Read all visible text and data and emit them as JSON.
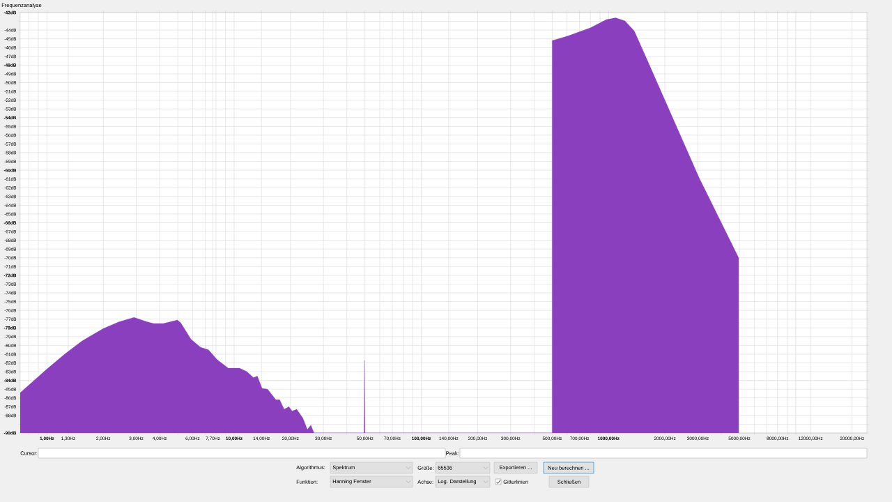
{
  "chart_data": {
    "type": "area",
    "title": "Frequenzanalyse",
    "annotations": [
      "Cursor:",
      "Peak:",
      "Algorithmus:",
      "Spektrum",
      "Größe:",
      "65536",
      "Exportieren ...",
      "Neu berechnen ...",
      "Funktion:",
      "Hanning Fenster",
      "Achse:",
      "Log. Darstellung",
      "Gitterlinien",
      "Schließen"
    ],
    "color": "#8a3fbf",
    "x": [
      0.72,
      0.72,
      1,
      1.26,
      1.54,
      1.99,
      2.43,
      2.92,
      3.42,
      3.72,
      4.18,
      4.97,
      5.18,
      5.88,
      6.61,
      7.3,
      8.09,
      9.3,
      10.7,
      11.7,
      12.7,
      13.3,
      14.1,
      15.1,
      16.7,
      17.5,
      18.5,
      19.6,
      20.4,
      21.6,
      23.3,
      24.6,
      25.7,
      26.7,
      35,
      49.4,
      49.7,
      50.0,
      200,
      500,
      500,
      600,
      798,
      975,
      1092,
      1224,
      1373,
      1585,
      3053,
      4955,
      4955
    ],
    "values": [
      -90.0,
      -85.4,
      -82.7,
      -80.9,
      -79.5,
      -78.1,
      -77.3,
      -76.8,
      -77.3,
      -77.5,
      -77.5,
      -77.1,
      -77.4,
      -79.3,
      -80.2,
      -80.5,
      -81.6,
      -82.6,
      -82.6,
      -83.0,
      -83.7,
      -83.5,
      -84.9,
      -85.0,
      -86.2,
      -86.2,
      -87.3,
      -87.0,
      -87.5,
      -87.3,
      -88.3,
      -89.6,
      -89.1,
      -90.0,
      null,
      -90.0,
      -81.7,
      -90.0,
      null,
      -90.0,
      -45.2,
      -44.7,
      -43.75,
      -42.8,
      -42.6,
      -42.95,
      -44.1,
      -47.1,
      -60.9,
      -70.0,
      -90.0
    ],
    "log": "x",
    "grid": true,
    "xlim": [
      0.72,
      24000
    ],
    "ylim": [
      -90,
      -42
    ],
    "xticks": [
      {
        "value": 0.8,
        "label": null
      },
      {
        "value": 0.9,
        "label": null
      },
      {
        "value": 1,
        "label": "1,00Hz"
      },
      {
        "value": 1.3,
        "label": "1,30Hz"
      },
      {
        "value": 2,
        "label": "2,00Hz"
      },
      {
        "value": 3,
        "label": "3,00Hz"
      },
      {
        "value": 4,
        "label": "4,00Hz"
      },
      {
        "value": 5,
        "label": null
      },
      {
        "value": 6,
        "label": "6,00Hz"
      },
      {
        "value": 7,
        "label": null
      },
      {
        "value": 7.7,
        "label": "7,70Hz"
      },
      {
        "value": 8,
        "label": null
      },
      {
        "value": 9,
        "label": null
      },
      {
        "value": 10,
        "label": "10,00Hz"
      },
      {
        "value": 14,
        "label": "14,00Hz"
      },
      {
        "value": 20,
        "label": "20,00Hz"
      },
      {
        "value": 30,
        "label": "30,00Hz"
      },
      {
        "value": 40,
        "label": null
      },
      {
        "value": 50,
        "label": "50,00Hz"
      },
      {
        "value": 60,
        "label": null
      },
      {
        "value": 70,
        "label": "70,00Hz"
      },
      {
        "value": 80,
        "label": null
      },
      {
        "value": 90,
        "label": null
      },
      {
        "value": 100,
        "label": "100,00Hz"
      },
      {
        "value": 140,
        "label": "140,00Hz"
      },
      {
        "value": 200,
        "label": "200,00Hz"
      },
      {
        "value": 300,
        "label": "300,00Hz"
      },
      {
        "value": 400,
        "label": null
      },
      {
        "value": 500,
        "label": "500,00Hz"
      },
      {
        "value": 600,
        "label": null
      },
      {
        "value": 700,
        "label": "700,00Hz"
      },
      {
        "value": 800,
        "label": null
      },
      {
        "value": 900,
        "label": null
      },
      {
        "value": 1000,
        "label": "1000,00Hz"
      },
      {
        "value": 2000,
        "label": "2000,00Hz"
      },
      {
        "value": 3000,
        "label": "3000,00Hz"
      },
      {
        "value": 4000,
        "label": null
      },
      {
        "value": 5000,
        "label": "5000,00Hz"
      },
      {
        "value": 6000,
        "label": null
      },
      {
        "value": 7000,
        "label": null
      },
      {
        "value": 8000,
        "label": "8000,00Hz"
      },
      {
        "value": 9000,
        "label": null
      },
      {
        "value": 10000,
        "label": null
      },
      {
        "value": 12000,
        "label": "12000,00Hz"
      },
      {
        "value": 20000,
        "label": "20000,00Hz"
      }
    ],
    "yticks": [
      {
        "value": -42,
        "label": "-42dB"
      },
      {
        "value": -43,
        "label": null
      },
      {
        "value": -44,
        "label": "-44dB"
      },
      {
        "value": -45,
        "label": "-45dB"
      },
      {
        "value": -46,
        "label": "-46dB"
      },
      {
        "value": -47,
        "label": "-47dB"
      },
      {
        "value": -48,
        "label": "-48dB"
      },
      {
        "value": -49,
        "label": "-49dB"
      },
      {
        "value": -50,
        "label": "-50dB"
      },
      {
        "value": -51,
        "label": "-51dB"
      },
      {
        "value": -52,
        "label": "-52dB"
      },
      {
        "value": -53,
        "label": "-53dB"
      },
      {
        "value": -54,
        "label": "-54dB"
      },
      {
        "value": -55,
        "label": "-55dB"
      },
      {
        "value": -56,
        "label": "-56dB"
      },
      {
        "value": -57,
        "label": "-57dB"
      },
      {
        "value": -58,
        "label": "-58dB"
      },
      {
        "value": -59,
        "label": "-59dB"
      },
      {
        "value": -60,
        "label": "-60dB"
      },
      {
        "value": -61,
        "label": "-61dB"
      },
      {
        "value": -62,
        "label": "-62dB"
      },
      {
        "value": -63,
        "label": "-63dB"
      },
      {
        "value": -64,
        "label": "-64dB"
      },
      {
        "value": -65,
        "label": "-65dB"
      },
      {
        "value": -66,
        "label": "-66dB"
      },
      {
        "value": -67,
        "label": "-67dB"
      },
      {
        "value": -68,
        "label": "-68dB"
      },
      {
        "value": -69,
        "label": "-69dB"
      },
      {
        "value": -70,
        "label": "-70dB"
      },
      {
        "value": -71,
        "label": "-71dB"
      },
      {
        "value": -72,
        "label": "-72dB"
      },
      {
        "value": -73,
        "label": "-73dB"
      },
      {
        "value": -74,
        "label": "-74dB"
      },
      {
        "value": -75,
        "label": "-75dB"
      },
      {
        "value": -76,
        "label": "-76dB"
      },
      {
        "value": -77,
        "label": "-77dB"
      },
      {
        "value": -78,
        "label": "-78dB"
      },
      {
        "value": -79,
        "label": "-79dB"
      },
      {
        "value": -80,
        "label": "-80dB"
      },
      {
        "value": -81,
        "label": "-81dB"
      },
      {
        "value": -82,
        "label": "-82dB"
      },
      {
        "value": -83,
        "label": "-83dB"
      },
      {
        "value": -84,
        "label": "-84dB"
      },
      {
        "value": -85,
        "label": "-85dB"
      },
      {
        "value": -86,
        "label": "-86dB"
      },
      {
        "value": -87,
        "label": "-87dB"
      },
      {
        "value": -88,
        "label": "-88dB"
      },
      {
        "value": -89,
        "label": null
      },
      {
        "value": -90,
        "label": "-90dB"
      }
    ]
  }
}
